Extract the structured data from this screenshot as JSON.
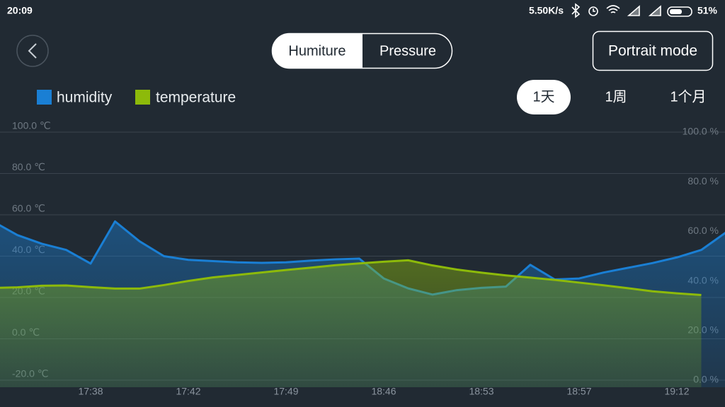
{
  "status_bar": {
    "time": "20:09",
    "speed": "5.50K/s",
    "battery": "51%"
  },
  "header": {
    "tabs": [
      "Humiture",
      "Pressure"
    ],
    "portrait_button": "Portrait mode"
  },
  "range_buttons": [
    "1天",
    "1周",
    "1个月"
  ],
  "chart_data": {
    "type": "line",
    "categories": [
      null,
      null,
      null,
      null,
      "17:38",
      null,
      null,
      null,
      "17:42",
      null,
      null,
      null,
      "17:49",
      null,
      null,
      null,
      "18:46",
      null,
      null,
      null,
      "18:53",
      null,
      null,
      null,
      "18:57",
      null,
      null,
      null,
      "19:12",
      null,
      null
    ],
    "series": [
      {
        "name": "humidity",
        "color": "#1a7fd4",
        "axis": "y2",
        "values": [
          64,
          58.5,
          55,
          52.5,
          47,
          64,
          56,
          50,
          48.5,
          48,
          47.5,
          47.3,
          47.5,
          48.2,
          48.7,
          49,
          41,
          37,
          34.5,
          36.3,
          37.2,
          37.7,
          46.5,
          40.6,
          41,
          43.4,
          45.3,
          47.2,
          49.5,
          52.5,
          59.5
        ]
      },
      {
        "name": "temperature",
        "color": "#8dba0a",
        "values": [
          24.6,
          24.9,
          25.7,
          25.8,
          25,
          24.3,
          24.3,
          26,
          28,
          29.7,
          30.9,
          32.1,
          33.3,
          34.4,
          35.6,
          36.5,
          37.3,
          38,
          35.5,
          33.5,
          32,
          30.7,
          29.6,
          28.5,
          27.2,
          25.9,
          24.5,
          23,
          22,
          21.2,
          null
        ]
      }
    ],
    "ylim": [
      -20,
      100
    ],
    "yticks": [
      {
        "value": -20,
        "label": "-20.0 ℃"
      },
      {
        "value": 0,
        "label": "0.0 ℃"
      },
      {
        "value": 20,
        "label": "20.0 ℃"
      },
      {
        "value": 40,
        "label": "40.0 ℃"
      },
      {
        "value": 60,
        "label": "60.0 ℃"
      },
      {
        "value": 80,
        "label": "80.0 ℃"
      },
      {
        "value": 100,
        "label": "100.0 ℃"
      }
    ],
    "y2lim": [
      0,
      100
    ],
    "y2ticks": [
      {
        "value": 0,
        "label": "0.0 %"
      },
      {
        "value": 20,
        "label": "20.0 %"
      },
      {
        "value": 40,
        "label": "40.0 %"
      },
      {
        "value": 60,
        "label": "60.0 %"
      },
      {
        "value": 80,
        "label": "80.0 %"
      },
      {
        "value": 100,
        "label": "100.0 %"
      }
    ],
    "grid": true
  }
}
